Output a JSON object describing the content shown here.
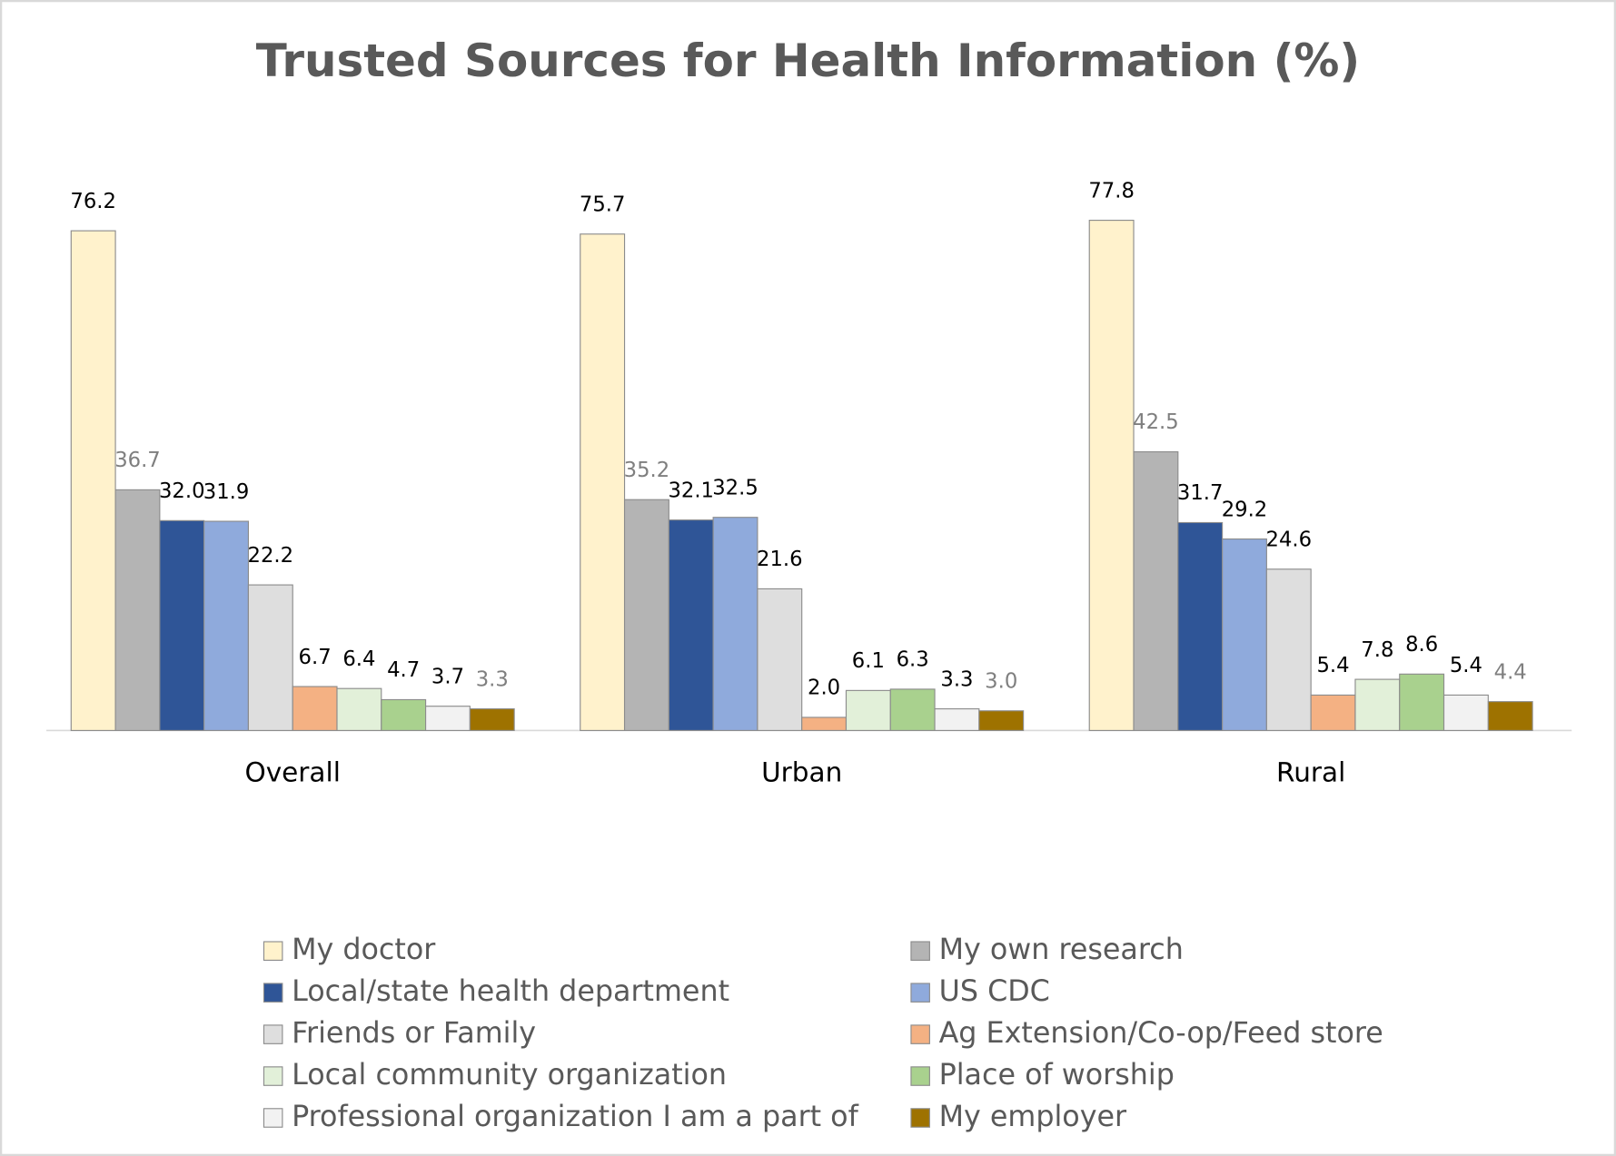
{
  "chart_data": {
    "type": "bar",
    "title": "Trusted Sources for Health Information (%)",
    "categories": [
      "Overall",
      "Urban",
      "Rural"
    ],
    "series": [
      {
        "name": "My doctor",
        "color": "#fff2cc",
        "label_color": "#000000",
        "values": [
          76.2,
          75.7,
          77.8
        ]
      },
      {
        "name": "My own research",
        "color": "#b4b4b4",
        "label_color": "#7f7f7f",
        "values": [
          36.7,
          35.2,
          42.5
        ]
      },
      {
        "name": "Local/state health department",
        "color": "#2f5597",
        "label_color": "#000000",
        "values": [
          32.0,
          32.1,
          31.7
        ]
      },
      {
        "name": "US CDC",
        "color": "#8faadc",
        "label_color": "#000000",
        "values": [
          31.9,
          32.5,
          29.2
        ]
      },
      {
        "name": "Friends or Family",
        "color": "#dedede",
        "label_color": "#000000",
        "values": [
          22.2,
          21.6,
          24.6
        ]
      },
      {
        "name": "Ag Extension/Co-op/Feed store",
        "color": "#f4b183",
        "label_color": "#000000",
        "values": [
          6.7,
          2.0,
          5.4
        ]
      },
      {
        "name": "Local community organization",
        "color": "#e2f0d9",
        "label_color": "#000000",
        "values": [
          6.4,
          6.1,
          7.8
        ]
      },
      {
        "name": "Place of worship",
        "color": "#a9d18e",
        "label_color": "#000000",
        "values": [
          4.7,
          6.3,
          8.6
        ]
      },
      {
        "name": "Professional organization I am a part of",
        "color": "#f2f2f2",
        "label_color": "#000000",
        "values": [
          3.7,
          3.3,
          5.4
        ]
      },
      {
        "name": "My employer",
        "color": "#9e7200",
        "label_color": "#7f7f7f",
        "values": [
          3.3,
          3.0,
          4.4
        ]
      }
    ],
    "value_labels": [
      [
        "76.2",
        "75.7",
        "77.8"
      ],
      [
        "36.7",
        "35.2",
        "42.5"
      ],
      [
        "32.0",
        "32.1",
        "31.7"
      ],
      [
        "31.9",
        "32.5",
        "29.2"
      ],
      [
        "22.2",
        "21.6",
        "24.6"
      ],
      [
        "6.7",
        "2.0",
        "5.4"
      ],
      [
        "6.4",
        "6.1",
        "7.8"
      ],
      [
        "4.7",
        "6.3",
        "8.6"
      ],
      [
        "3.7",
        "3.3",
        "5.4"
      ],
      [
        "3.3",
        "3.0",
        "4.4"
      ]
    ],
    "legend_columns": 2
  }
}
